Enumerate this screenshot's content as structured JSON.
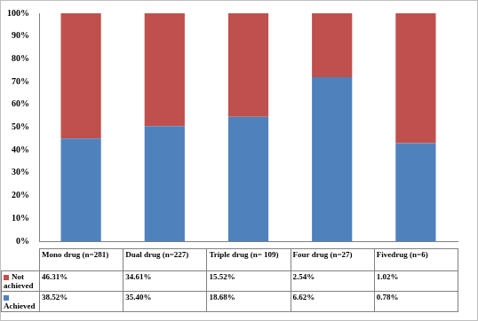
{
  "chart_data": {
    "type": "bar",
    "categories": [
      "Mono drug (n=281)",
      "Dual drug (n=227)",
      "Triple drug (n= 109)",
      "Four drug (n=27)",
      "Fivedrug (n=6)"
    ],
    "series": [
      {
        "name": "Not achieved",
        "color": "#c0504d",
        "values": [
          55,
          49.5,
          45.4,
          28,
          57
        ],
        "table": [
          "46.31%",
          "34.61%",
          "15.52%",
          "2.54%",
          "1.02%"
        ]
      },
      {
        "name": "Achieved",
        "color": "#4f81bd",
        "values": [
          45,
          50.5,
          54.6,
          72,
          43
        ],
        "table": [
          "38.52%",
          "35.40%",
          "18.68%",
          "6.62%",
          "0.78%"
        ]
      }
    ],
    "ylim": [
      0,
      100
    ],
    "yticks": [
      {
        "value": 0,
        "label": "0%"
      },
      {
        "value": 10,
        "label": "10%"
      },
      {
        "value": 20,
        "label": "20%"
      },
      {
        "value": 30,
        "label": "30%"
      },
      {
        "value": 40,
        "label": "40%"
      },
      {
        "value": 50,
        "label": "50%"
      },
      {
        "value": 60,
        "label": "60%"
      },
      {
        "value": 70,
        "label": "70%"
      },
      {
        "value": 80,
        "label": "80%"
      },
      {
        "value": 90,
        "label": "90%"
      },
      {
        "value": 100,
        "label": "100%"
      }
    ],
    "stacked": true,
    "grid": false
  }
}
